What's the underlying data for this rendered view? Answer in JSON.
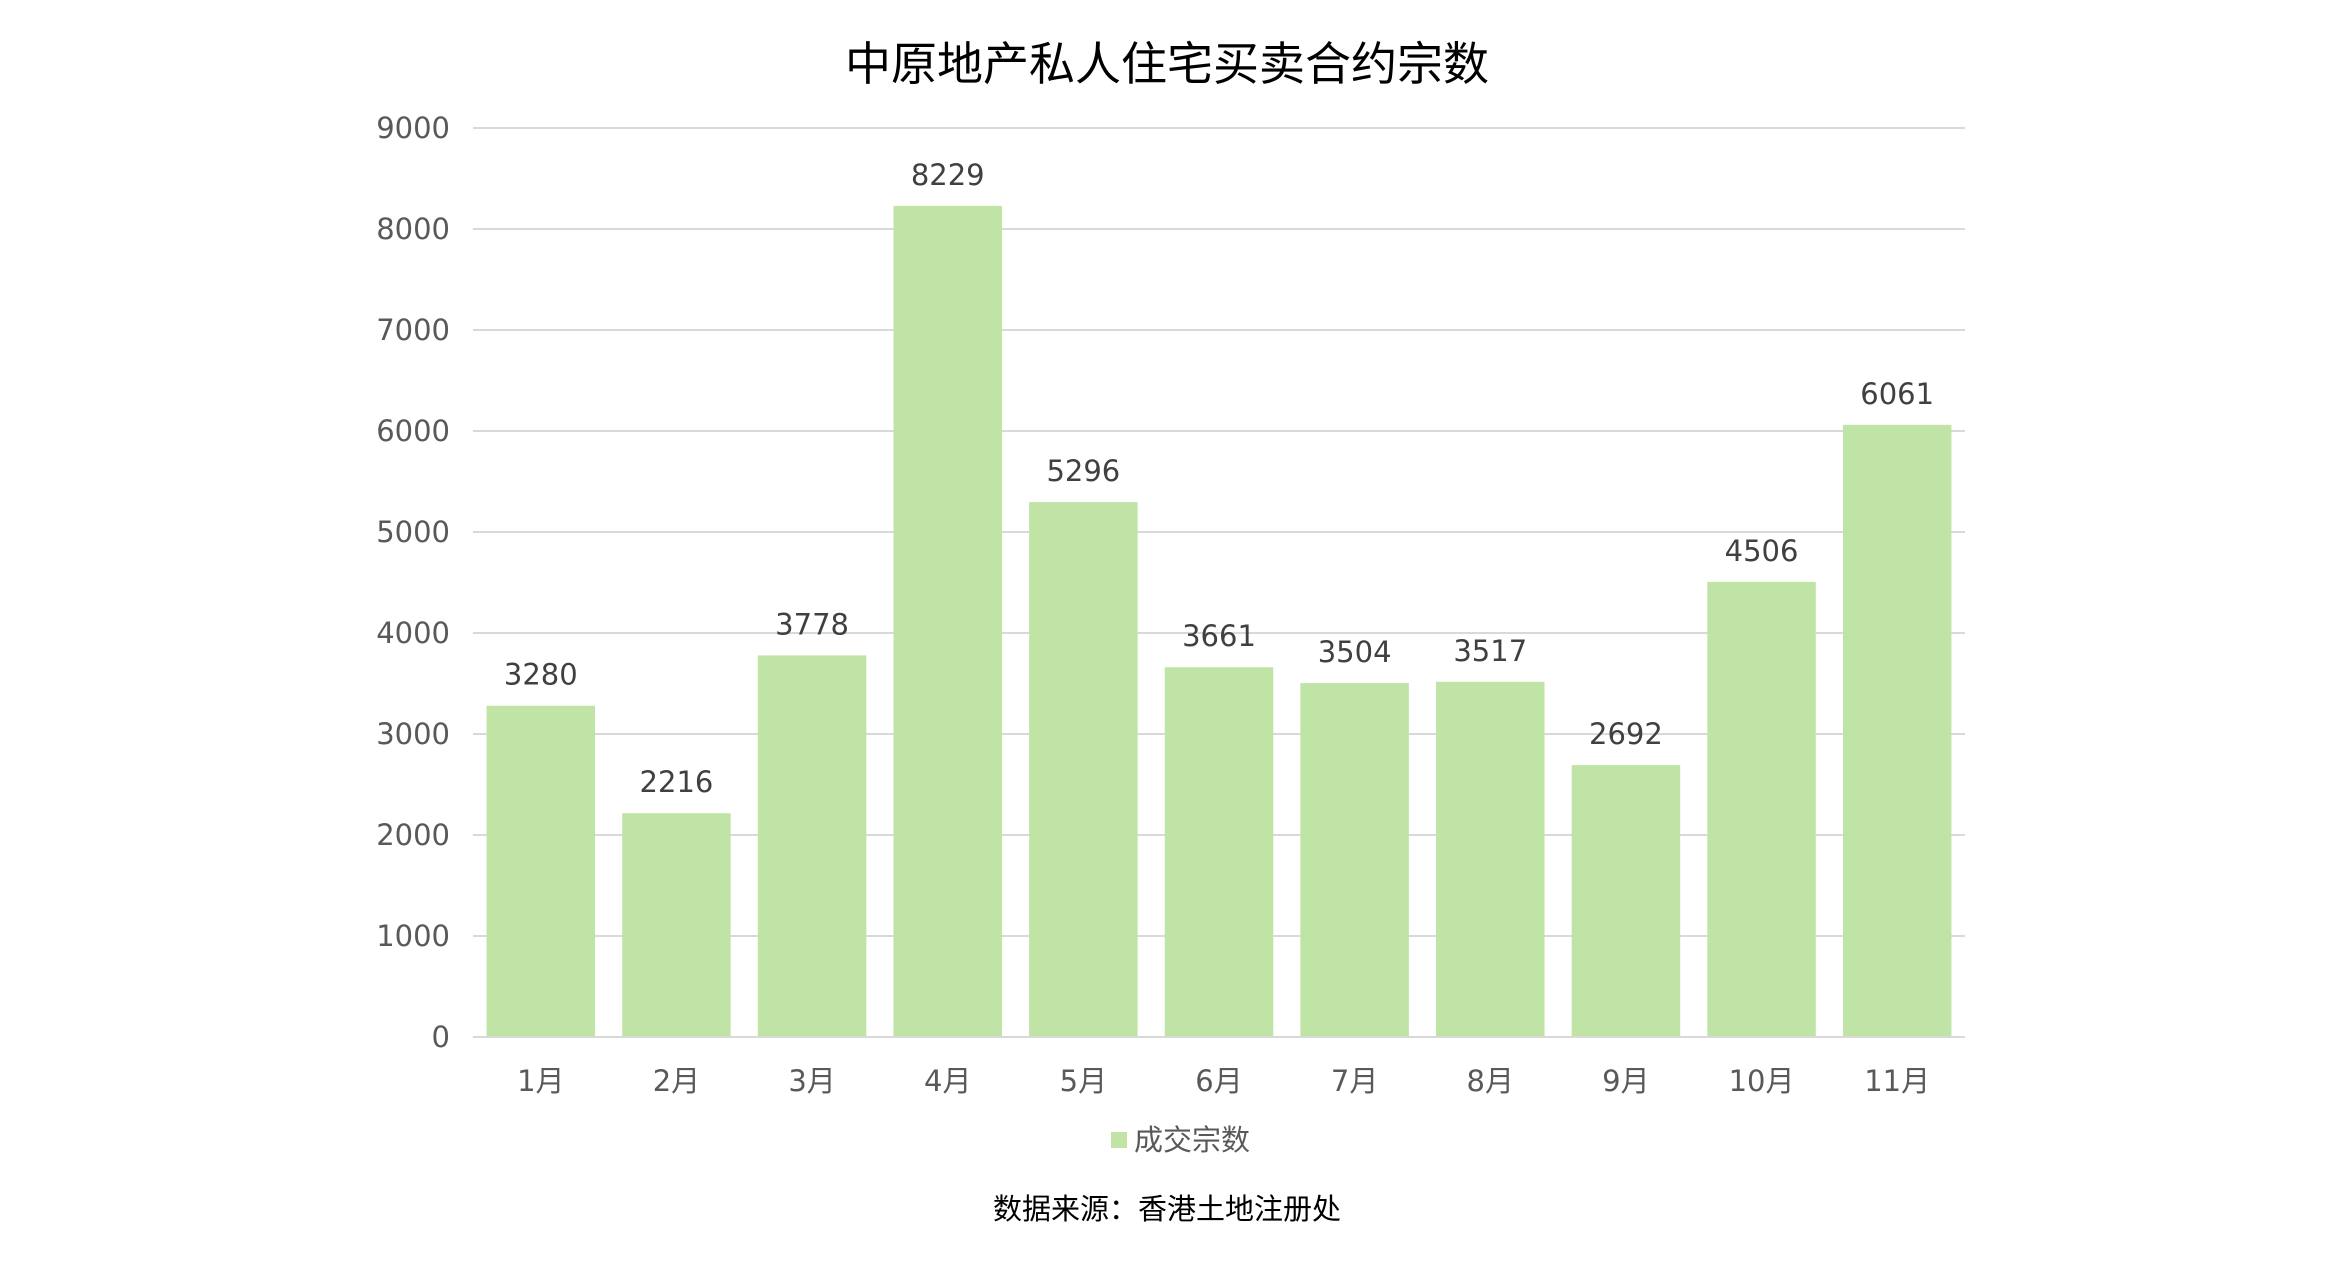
{
  "chart_data": {
    "type": "bar",
    "title": "中原地产私人住宅买卖合约宗数",
    "categories": [
      "1月",
      "2月",
      "3月",
      "4月",
      "5月",
      "6月",
      "7月",
      "8月",
      "9月",
      "10月",
      "11月"
    ],
    "series": [
      {
        "name": "成交宗数",
        "color": "#c0e4a6",
        "values": [
          3280,
          2216,
          3778,
          8229,
          5296,
          3661,
          3504,
          3517,
          2692,
          4506,
          6061
        ]
      }
    ],
    "ylim": [
      0,
      9000
    ],
    "yticks": [
      0,
      1000,
      2000,
      3000,
      4000,
      5000,
      6000,
      7000,
      8000,
      9000
    ],
    "grid": true,
    "legend_position": "bottom",
    "source_note": "数据来源：香港土地注册处"
  }
}
